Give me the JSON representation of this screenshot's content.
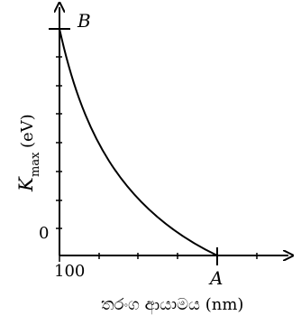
{
  "chart_data": {
    "type": "line",
    "title": "",
    "xlabel": "තරංග ආයාමය (nm)",
    "ylabel_main": "K",
    "ylabel_sub": "max",
    "ylabel_unit": "(eV)",
    "origin_label": "0",
    "x_tick_label": "100",
    "point_labels": {
      "top": "B",
      "right": "A"
    },
    "grid": false,
    "legend": "none"
  },
  "colors": {
    "ink": "#000000",
    "background": "#ffffff"
  }
}
